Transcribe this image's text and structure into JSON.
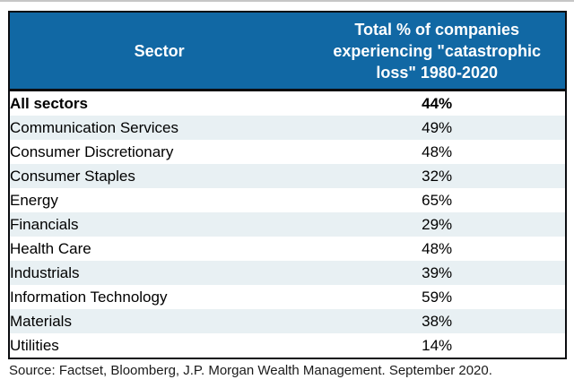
{
  "table": {
    "header": {
      "sector": "Sector",
      "value": "Total % of companies experiencing \"catastrophic loss\" 1980-2020"
    },
    "rows": [
      {
        "sector": "All sectors",
        "value": "44%"
      },
      {
        "sector": "Communication Services",
        "value": "49%"
      },
      {
        "sector": "Consumer Discretionary",
        "value": "48%"
      },
      {
        "sector": "Consumer Staples",
        "value": "32%"
      },
      {
        "sector": "Energy",
        "value": "65%"
      },
      {
        "sector": "Financials",
        "value": "29%"
      },
      {
        "sector": "Health Care",
        "value": "48%"
      },
      {
        "sector": "Industrials",
        "value": "39%"
      },
      {
        "sector": "Information Technology",
        "value": "59%"
      },
      {
        "sector": "Materials",
        "value": "38%"
      },
      {
        "sector": "Utilities",
        "value": "14%"
      }
    ]
  },
  "source": "Source: Factset, Bloomberg, J.P. Morgan Wealth Management. September 2020.",
  "colors": {
    "header_bg": "#1168a4",
    "header_text": "#ffffff",
    "alt_row_bg": "#e8f0f3",
    "border": "#0b0c10"
  },
  "chart_data": {
    "type": "table",
    "title": "",
    "columns": [
      "Sector",
      "Total % of companies experiencing \"catastrophic loss\" 1980-2020"
    ],
    "categories": [
      "All sectors",
      "Communication Services",
      "Consumer Discretionary",
      "Consumer Staples",
      "Energy",
      "Financials",
      "Health Care",
      "Industrials",
      "Information Technology",
      "Materials",
      "Utilities"
    ],
    "values_pct": [
      44,
      49,
      48,
      32,
      65,
      29,
      48,
      39,
      59,
      38,
      14
    ],
    "source": "Source: Factset, Bloomberg, J.P. Morgan Wealth Management. September 2020."
  }
}
